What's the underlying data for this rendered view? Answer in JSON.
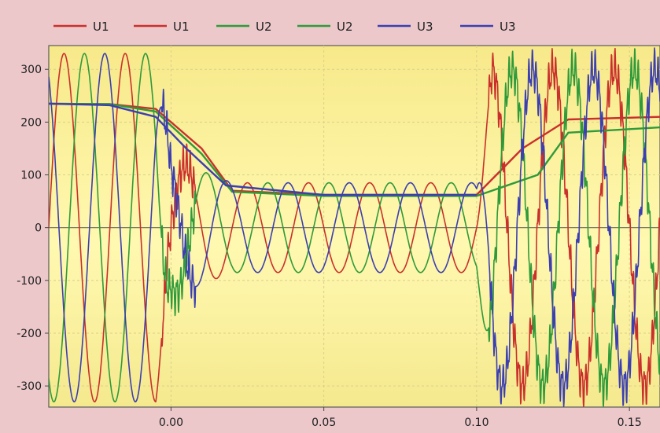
{
  "chart_data": {
    "type": "line",
    "title": "",
    "xlabel": "",
    "ylabel": "",
    "xlim": [
      -0.04,
      0.16
    ],
    "ylim": [
      -340,
      345
    ],
    "x_ticks": [
      "0.00",
      "0.05",
      "0.10",
      "0.15"
    ],
    "x_tick_values": [
      0.0,
      0.05,
      0.1,
      0.15
    ],
    "y_ticks": [
      "300",
      "200",
      "100",
      "0",
      "-100",
      "-200",
      "-300"
    ],
    "y_tick_values": [
      300,
      200,
      100,
      0,
      -100,
      -200,
      -300
    ],
    "grid": true,
    "legend_position": "top",
    "series": [
      {
        "name": "U1",
        "kind": "instantaneous",
        "color": "#c9302c",
        "phase_deg": 0
      },
      {
        "name": "U1",
        "kind": "rms",
        "color": "#c9302c",
        "x": [
          -0.04,
          -0.02,
          -0.005,
          0.01,
          0.02,
          0.05,
          0.1,
          0.115,
          0.13,
          0.16
        ],
        "y": [
          235,
          234,
          225,
          150,
          70,
          62,
          62,
          150,
          205,
          210
        ]
      },
      {
        "name": "U2",
        "kind": "instantaneous",
        "color": "#2f9a3a",
        "phase_deg": -120
      },
      {
        "name": "U2",
        "kind": "rms",
        "color": "#2f9a3a",
        "x": [
          -0.04,
          -0.02,
          -0.005,
          0.01,
          0.02,
          0.05,
          0.1,
          0.12,
          0.13,
          0.16
        ],
        "y": [
          235,
          234,
          220,
          140,
          68,
          60,
          60,
          100,
          180,
          190
        ]
      },
      {
        "name": "U3",
        "kind": "instantaneous",
        "color": "#3b3fb0",
        "phase_deg": 120
      },
      {
        "name": "U3",
        "kind": "rms",
        "color": "#3b3fb0",
        "x": [
          -0.04,
          -0.02,
          -0.005,
          0.005,
          0.018,
          0.05,
          0.1
        ],
        "y": [
          235,
          232,
          210,
          150,
          80,
          62,
          62
        ]
      }
    ]
  }
}
